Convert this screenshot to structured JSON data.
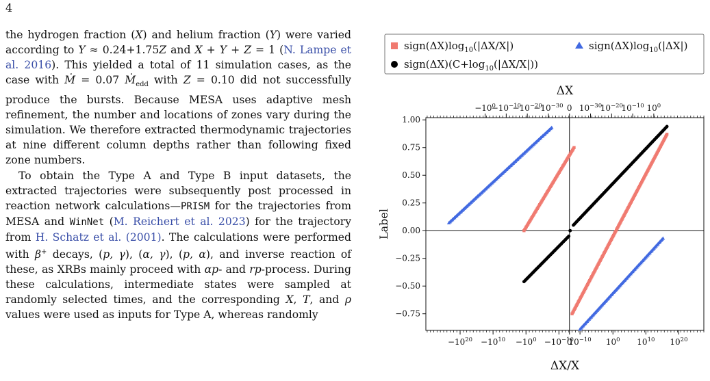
{
  "page_number": "4",
  "text": {
    "p1": [
      {
        "t": "the hydrogen fraction ("
      },
      {
        "t": "X",
        "c": "i"
      },
      {
        "t": ") and helium fraction ("
      },
      {
        "t": "Y",
        "c": "i"
      },
      {
        "t": ") were varied according to "
      },
      {
        "t": "Y",
        "c": "i"
      },
      {
        "t": " ≈ 0.24+1.75"
      },
      {
        "t": "Z",
        "c": "i"
      },
      {
        "t": " and "
      },
      {
        "t": "X",
        "c": "i"
      },
      {
        "t": " + "
      },
      {
        "t": "Y",
        "c": "i"
      },
      {
        "t": " + "
      },
      {
        "t": "Z",
        "c": "i"
      },
      {
        "t": " = 1 ("
      },
      {
        "t": "N. Lampe et al. 2016",
        "c": "cite"
      },
      {
        "t": "). This yielded a total of 11 simulation cases, as the case with "
      },
      {
        "t": "Ṁ",
        "c": "i"
      },
      {
        "t": " = 0.07 "
      },
      {
        "t": "Ṁ",
        "c": "i"
      },
      {
        "t": "edd",
        "c": "sub"
      },
      {
        "t": " with "
      },
      {
        "t": "Z",
        "c": "i"
      },
      {
        "t": " = 0.10 did not successfully produce the bursts. Because MESA uses adaptive mesh refinement, the number and locations of zones vary during the simulation. We therefore extracted thermodynamic trajectories at nine different column depths rather than following fixed zone numbers."
      }
    ],
    "p2": [
      {
        "t": "To obtain the Type A and Type B input datasets, the extracted trajectories were subsequently post processed in reaction network calculations—"
      },
      {
        "t": "PRISM",
        "c": "mono"
      },
      {
        "t": " for the trajectories from MESA and "
      },
      {
        "t": "WinNet",
        "c": "mono"
      },
      {
        "t": " ("
      },
      {
        "t": "M. Reichert et al. 2023",
        "c": "cite"
      },
      {
        "t": ") for the trajectory from "
      },
      {
        "t": "H. Schatz et al. (2001)",
        "c": "cite"
      },
      {
        "t": ". The calculations were performed with "
      },
      {
        "t": "β",
        "c": "i"
      },
      {
        "t": "+",
        "c": "sup"
      },
      {
        "t": " decays, ("
      },
      {
        "t": "p, γ",
        "c": "i"
      },
      {
        "t": "), ("
      },
      {
        "t": "α, γ",
        "c": "i"
      },
      {
        "t": "), ("
      },
      {
        "t": "p, α",
        "c": "i"
      },
      {
        "t": "), and inverse reaction of these, as XRBs mainly proceed with "
      },
      {
        "t": "αp",
        "c": "i"
      },
      {
        "t": "- and "
      },
      {
        "t": "rp",
        "c": "i"
      },
      {
        "t": "-process. During these calculations, intermediate states were sampled at randomly selected times, and the corresponding "
      },
      {
        "t": "X",
        "c": "i"
      },
      {
        "t": ", "
      },
      {
        "t": "T",
        "c": "i"
      },
      {
        "t": ", and "
      },
      {
        "t": "ρ",
        "c": "i"
      },
      {
        "t": " values were used as inputs for Type A, whereas randomly"
      }
    ]
  },
  "chart_data": {
    "type": "scatter",
    "xlabel": "ΔX/X",
    "top_xlabel": "ΔX",
    "ylabel": "Label",
    "ylim": [
      -0.9,
      1.02
    ],
    "yticks": [
      "1.00",
      "0.75",
      "0.50",
      "0.25",
      "0.00",
      "−0.25",
      "−0.50",
      "−0.75"
    ],
    "ytick_values": [
      1.0,
      0.75,
      0.5,
      0.25,
      0.0,
      -0.25,
      -0.5,
      -0.75
    ],
    "bottom_xticks": [
      {
        "text": "−10",
        "exp": "20",
        "x": -1.0
      },
      {
        "text": "−10",
        "exp": "10",
        "x": -0.5
      },
      {
        "text": "−10",
        "exp": "0",
        "x": 0.0
      },
      {
        "text": "−10",
        "exp": "−10",
        "x": 0.5
      },
      {
        "text": "0",
        "exp": "",
        "x": 0.66
      },
      {
        "text": "10",
        "exp": "−10",
        "x": 0.82
      },
      {
        "text": "10",
        "exp": "0",
        "x": 1.32
      },
      {
        "text": "10",
        "exp": "10",
        "x": 1.82
      },
      {
        "text": "10",
        "exp": "20",
        "x": 2.32
      }
    ],
    "top_xticks": [
      {
        "text": "−10",
        "exp": "0",
        "x": -0.62
      },
      {
        "text": "−10",
        "exp": "−10",
        "x": -0.3
      },
      {
        "text": "−10",
        "exp": "−20",
        "x": 0.02
      },
      {
        "text": "−10",
        "exp": "−30",
        "x": 0.34
      },
      {
        "text": "0",
        "exp": "",
        "x": 0.66
      },
      {
        "text": "10",
        "exp": "−30",
        "x": 0.98
      },
      {
        "text": "10",
        "exp": "−20",
        "x": 1.3
      },
      {
        "text": "10",
        "exp": "−10",
        "x": 1.62
      },
      {
        "text": "10",
        "exp": "0",
        "x": 1.94
      }
    ],
    "xlim": [
      -1.52,
      2.7
    ],
    "zero_x": 0.66,
    "legend": {
      "placement": "top",
      "entries": [
        {
          "marker": "square",
          "color": "#f07a70",
          "text": "sign(ΔX)log",
          "sub": "10",
          "tail": "(|ΔX/X|)"
        },
        {
          "marker": "triangle",
          "color": "#4169e1",
          "text": "sign(ΔX)log",
          "sub": "10",
          "tail": "(|ΔX|)"
        },
        {
          "marker": "circle",
          "color": "#000000",
          "text": "sign(ΔX)(C+log",
          "sub": "10",
          "tail": "(|ΔX/X|))"
        }
      ]
    },
    "series": [
      {
        "name": "sign(ΔX)log10(|ΔX/X|)",
        "marker": "square",
        "color": "#f07a70",
        "segments": [
          {
            "x": [
              -0.03,
              0.73
            ],
            "y": [
              0.0,
              0.75
            ]
          },
          {
            "x": [
              0.7,
              2.14
            ],
            "y": [
              -0.75,
              0.87
            ]
          }
        ]
      },
      {
        "name": "sign(ΔX)log10(|ΔX|)",
        "marker": "triangle",
        "color": "#4169e1",
        "segments": [
          {
            "x": [
              -1.17,
              0.39
            ],
            "y": [
              0.07,
              0.93
            ]
          },
          {
            "x": [
              0.82,
              2.08
            ],
            "y": [
              -0.89,
              -0.07
            ]
          }
        ]
      },
      {
        "name": "sign(ΔX)(C+log10(|ΔX/X|))",
        "marker": "circle",
        "color": "#000000",
        "segments": [
          {
            "x": [
              -0.03,
              0.65
            ],
            "y": [
              -0.46,
              -0.05
            ]
          },
          {
            "x": [
              0.67,
              0.67
            ],
            "y": [
              0.0,
              0.0
            ]
          },
          {
            "x": [
              0.72,
              2.14
            ],
            "y": [
              0.05,
              0.94
            ]
          }
        ]
      }
    ]
  }
}
